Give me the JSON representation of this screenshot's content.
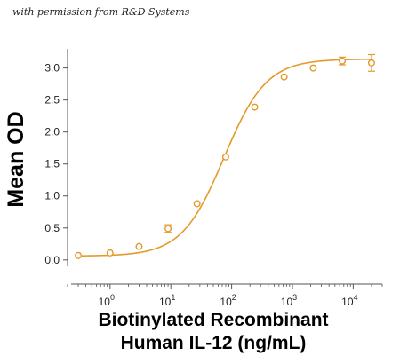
{
  "permission_note": "with permission from R&D Systems",
  "colors": {
    "series": "#E39A2C",
    "axis": "#555555"
  },
  "chart_data": {
    "type": "scatter",
    "xlabel_lines": [
      "Biotinylated Recombinant",
      "Human IL-12 (ng/mL)"
    ],
    "ylabel": "Mean OD",
    "x_scale": "log",
    "xlim": [
      0.2,
      30000
    ],
    "ylim": [
      -0.1,
      3.3
    ],
    "x_ticks": [
      {
        "value": 1,
        "base": "10",
        "exp": "0"
      },
      {
        "value": 10,
        "base": "10",
        "exp": "1"
      },
      {
        "value": 100,
        "base": "10",
        "exp": "2"
      },
      {
        "value": 1000,
        "base": "10",
        "exp": "3"
      },
      {
        "value": 10000,
        "base": "10",
        "exp": "4"
      }
    ],
    "y_ticks": [
      "0.0",
      "0.5",
      "1.0",
      "1.5",
      "2.0",
      "2.5",
      "3.0"
    ],
    "points": [
      {
        "x": 0.3,
        "y": 0.07,
        "err": 0.0
      },
      {
        "x": 1.0,
        "y": 0.11,
        "err": 0.0
      },
      {
        "x": 3.0,
        "y": 0.21,
        "err": 0.0
      },
      {
        "x": 9.0,
        "y": 0.49,
        "err": 0.06
      },
      {
        "x": 27,
        "y": 0.88,
        "err": 0.0
      },
      {
        "x": 80,
        "y": 1.61,
        "err": 0.0
      },
      {
        "x": 240,
        "y": 2.39,
        "err": 0.0
      },
      {
        "x": 730,
        "y": 2.86,
        "err": 0.0
      },
      {
        "x": 2200,
        "y": 3.0,
        "err": 0.0
      },
      {
        "x": 6600,
        "y": 3.11,
        "err": 0.06
      },
      {
        "x": 20000,
        "y": 3.08,
        "err": 0.13
      }
    ],
    "fit": {
      "bottom": 0.06,
      "top": 3.14,
      "ec50": 75,
      "hill": 1.25
    },
    "grid": false
  }
}
